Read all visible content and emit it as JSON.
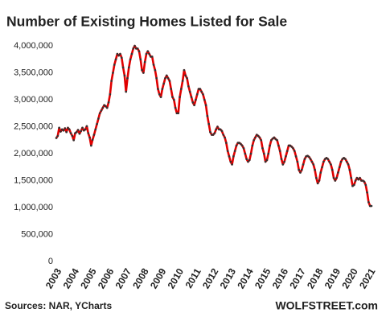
{
  "chart_data": {
    "type": "line",
    "title": "Number of Existing Homes Listed for Sale",
    "source": "Sources: NAR, YCharts",
    "credit": "WOLFSTREET.com",
    "categories": [
      "2003",
      null,
      null,
      null,
      null,
      null,
      null,
      null,
      null,
      null,
      null,
      null,
      "2004",
      null,
      null,
      null,
      null,
      null,
      null,
      null,
      null,
      null,
      null,
      null,
      "2005",
      null,
      null,
      null,
      null,
      null,
      null,
      null,
      null,
      null,
      null,
      null,
      "2006",
      null,
      null,
      null,
      null,
      null,
      null,
      null,
      null,
      null,
      null,
      null,
      "2007",
      null,
      null,
      null,
      null,
      null,
      null,
      null,
      null,
      null,
      null,
      null,
      "2008",
      null,
      null,
      null,
      null,
      null,
      null,
      null,
      null,
      null,
      null,
      null,
      "2009",
      null,
      null,
      null,
      null,
      null,
      null,
      null,
      null,
      null,
      null,
      null,
      "2010",
      null,
      null,
      null,
      null,
      null,
      null,
      null,
      null,
      null,
      null,
      null,
      "2011",
      null,
      null,
      null,
      null,
      null,
      null,
      null,
      null,
      null,
      null,
      null,
      "2012",
      null,
      null,
      null,
      null,
      null,
      null,
      null,
      null,
      null,
      null,
      null,
      "2013",
      null,
      null,
      null,
      null,
      null,
      null,
      null,
      null,
      null,
      null,
      null,
      "2014",
      null,
      null,
      null,
      null,
      null,
      null,
      null,
      null,
      null,
      null,
      null,
      "2015",
      null,
      null,
      null,
      null,
      null,
      null,
      null,
      null,
      null,
      null,
      null,
      "2016",
      null,
      null,
      null,
      null,
      null,
      null,
      null,
      null,
      null,
      null,
      null,
      "2017",
      null,
      null,
      null,
      null,
      null,
      null,
      null,
      null,
      null,
      null,
      null,
      "2018",
      null,
      null,
      null,
      null,
      null,
      null,
      null,
      null,
      null,
      null,
      null,
      "2019",
      null,
      null,
      null,
      null,
      null,
      null,
      null,
      null,
      null,
      null,
      null,
      "2020",
      null,
      null,
      null,
      null,
      null,
      null,
      null,
      null,
      null,
      null,
      null,
      "2021",
      null
    ],
    "series": [
      {
        "name": "Existing homes listed for sale",
        "color": "#e00000",
        "marker_color": "#333333",
        "values": [
          2290000,
          2330000,
          2480000,
          2410000,
          2450000,
          2430000,
          2470000,
          2400000,
          2480000,
          2450000,
          2380000,
          2330000,
          2250000,
          2380000,
          2400000,
          2440000,
          2370000,
          2420000,
          2480000,
          2430000,
          2450000,
          2510000,
          2380000,
          2300000,
          2150000,
          2260000,
          2350000,
          2450000,
          2550000,
          2650000,
          2750000,
          2800000,
          2850000,
          2900000,
          2880000,
          2850000,
          2950000,
          3100000,
          3350000,
          3500000,
          3650000,
          3750000,
          3850000,
          3820000,
          3850000,
          3780000,
          3600000,
          3450000,
          3150000,
          3400000,
          3600000,
          3750000,
          3850000,
          3950000,
          4000000,
          3950000,
          3950000,
          3900000,
          3750000,
          3550000,
          3500000,
          3700000,
          3850000,
          3900000,
          3850000,
          3800000,
          3800000,
          3650000,
          3550000,
          3400000,
          3200000,
          3100000,
          3050000,
          3200000,
          3300000,
          3400000,
          3450000,
          3400000,
          3350000,
          3200000,
          3050000,
          3000000,
          2850000,
          2750000,
          2750000,
          3050000,
          3200000,
          3350000,
          3550000,
          3450000,
          3400000,
          3250000,
          3150000,
          3050000,
          2950000,
          2900000,
          3000000,
          3100000,
          3200000,
          3200000,
          3150000,
          3100000,
          3000000,
          2900000,
          2700000,
          2550000,
          2400000,
          2350000,
          2350000,
          2380000,
          2450000,
          2500000,
          2450000,
          2450000,
          2420000,
          2350000,
          2300000,
          2200000,
          2050000,
          1950000,
          1850000,
          1800000,
          1950000,
          2050000,
          2150000,
          2200000,
          2200000,
          2180000,
          2150000,
          2100000,
          2000000,
          1900000,
          1850000,
          1880000,
          2000000,
          2150000,
          2250000,
          2300000,
          2350000,
          2330000,
          2300000,
          2250000,
          2100000,
          2000000,
          1850000,
          1880000,
          2000000,
          2150000,
          2250000,
          2280000,
          2300000,
          2270000,
          2250000,
          2150000,
          2050000,
          1900000,
          1800000,
          1850000,
          1950000,
          2050000,
          2150000,
          2150000,
          2130000,
          2100000,
          2050000,
          1950000,
          1850000,
          1700000,
          1650000,
          1700000,
          1800000,
          1900000,
          1950000,
          1960000,
          1940000,
          1900000,
          1850000,
          1800000,
          1700000,
          1550000,
          1450000,
          1500000,
          1650000,
          1750000,
          1850000,
          1900000,
          1920000,
          1900000,
          1850000,
          1800000,
          1700000,
          1550000,
          1500000,
          1550000,
          1650000,
          1750000,
          1850000,
          1900000,
          1920000,
          1900000,
          1850000,
          1800000,
          1700000,
          1550000,
          1400000,
          1420000,
          1500000,
          1550000,
          1520000,
          1550000,
          1500000,
          1500000,
          1480000,
          1420000,
          1280000,
          1100000,
          1030000,
          1030000
        ]
      }
    ],
    "ylim": [
      0,
      4000000
    ],
    "yticks": [
      0,
      {
        "value": 500000,
        "label": "500,000"
      },
      {
        "value": 1000000,
        "label": "1,000,000"
      },
      {
        "value": 1500000,
        "label": "1,500,000"
      },
      {
        "value": 2000000,
        "label": "2,000,000"
      },
      {
        "value": 2500000,
        "label": "2,500,000"
      },
      {
        "value": 3000000,
        "label": "3,000,000"
      },
      {
        "value": 3500000,
        "label": "3,500,000"
      },
      {
        "value": 4000000,
        "label": "4,000,000"
      }
    ],
    "grid": false
  }
}
